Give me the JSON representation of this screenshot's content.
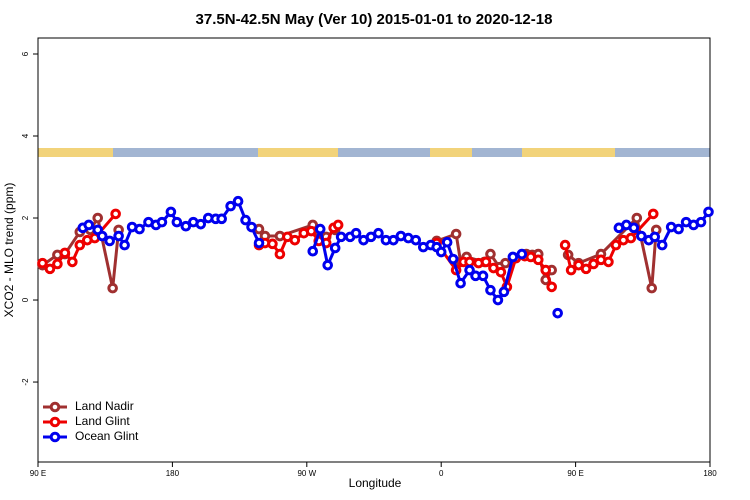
{
  "chart_data": {
    "type": "line",
    "title": "37.5N-42.5N May (Ver 10)   2015-01-01 to 2020-12-18",
    "xlabel": "Longitude",
    "ylabel": "XCO2 - MLO trend (ppm)",
    "xlim": [
      90,
      540
    ],
    "ylim": [
      -3.95,
      6.39
    ],
    "xticks": [
      {
        "value": 90,
        "label": "90 E"
      },
      180,
      {
        "value": 270,
        "label": "90 W"
      },
      {
        "value": 360,
        "label": "0"
      },
      {
        "value": 450,
        "label": "90 E"
      },
      {
        "value": 540,
        "label": "180"
      }
    ],
    "yticks": [
      -2,
      0,
      2,
      4,
      6
    ],
    "legend": "bottom-left",
    "series": [
      {
        "name": "Land Nadir",
        "color": "#a03030",
        "x": [
          93,
          103,
          108,
          118,
          125,
          130,
          140,
          144,
          200,
          238,
          242,
          252,
          274,
          278,
          283,
          289,
          320,
          357,
          370,
          373,
          377,
          389,
          393,
          399,
          403,
          417,
          421,
          425,
          430,
          434,
          440,
          445,
          452,
          467,
          491,
          501,
          504
        ],
        "values": [
          0.85,
          1.1,
          1.12,
          1.66,
          1.71,
          2.0,
          0.29,
          1.71,
          null,
          1.73,
          1.56,
          1.56,
          1.83,
          1.66,
          1.54,
          1.71,
          null,
          1.44,
          1.61,
          0.93,
          1.05,
          0.93,
          1.12,
          0.8,
          0.9,
          1.12,
          1.1,
          1.12,
          0.49,
          0.73,
          null,
          1.1,
          0.9,
          1.12,
          2.0,
          0.29,
          1.71
        ]
      },
      {
        "name": "Land Glint",
        "color": "#ee0000",
        "x": [
          93,
          98,
          103,
          108,
          113,
          118,
          123,
          128,
          142,
          200,
          238,
          242,
          247,
          252,
          257,
          262,
          268,
          273,
          278,
          283,
          288,
          291,
          320,
          357,
          370,
          375,
          379,
          385,
          390,
          395,
          400,
          404,
          410,
          416,
          420,
          425,
          430,
          434,
          440,
          443,
          447,
          452,
          457,
          462,
          467,
          472,
          477,
          482,
          487,
          502
        ],
        "values": [
          0.9,
          0.76,
          0.88,
          1.15,
          0.93,
          1.34,
          1.46,
          1.51,
          2.1,
          null,
          1.34,
          1.39,
          1.37,
          1.12,
          1.54,
          1.46,
          1.63,
          1.68,
          1.44,
          1.39,
          1.76,
          1.83,
          null,
          1.39,
          0.73,
          0.93,
          0.93,
          0.9,
          0.93,
          0.78,
          0.68,
          0.32,
          1.02,
          1.07,
          1.05,
          0.98,
          0.73,
          0.32,
          null,
          1.34,
          0.73,
          0.85,
          0.76,
          0.88,
          0.98,
          0.93,
          1.34,
          1.46,
          1.51,
          2.1
        ]
      },
      {
        "name": "Ocean Glint",
        "color": "#0000ee",
        "x": [
          120,
          124,
          130,
          133,
          138,
          144,
          148,
          153,
          158,
          164,
          169,
          173,
          179,
          183,
          189,
          194,
          199,
          204,
          209,
          213,
          219,
          224,
          229,
          233,
          238,
          256,
          274,
          279,
          284,
          289,
          293,
          299,
          303,
          308,
          313,
          318,
          323,
          328,
          333,
          338,
          343,
          348,
          353,
          357,
          360,
          364,
          368,
          373,
          379,
          383,
          388,
          393,
          398,
          402,
          408,
          414,
          426,
          438,
          458,
          479,
          484,
          489,
          494,
          499,
          503,
          508,
          514,
          519,
          524,
          529,
          534,
          539
        ],
        "values": [
          1.76,
          1.83,
          1.71,
          1.56,
          1.44,
          1.56,
          1.34,
          1.78,
          1.73,
          1.9,
          1.83,
          1.9,
          2.15,
          1.9,
          1.8,
          1.9,
          1.85,
          2.0,
          1.98,
          1.98,
          2.29,
          2.41,
          1.95,
          1.78,
          1.39,
          null,
          1.19,
          1.73,
          0.85,
          1.27,
          1.54,
          1.54,
          1.63,
          1.46,
          1.54,
          1.63,
          1.46,
          1.46,
          1.56,
          1.51,
          1.46,
          1.29,
          1.34,
          1.29,
          1.17,
          1.41,
          1.0,
          0.41,
          0.73,
          0.59,
          0.59,
          0.24,
          0,
          0.2,
          1.05,
          1.12,
          null,
          -0.32,
          null,
          1.76,
          1.83,
          1.76,
          1.56,
          1.46,
          1.54,
          1.34,
          1.78,
          1.73,
          1.9,
          1.83,
          1.9,
          2.15
        ]
      }
    ]
  }
}
